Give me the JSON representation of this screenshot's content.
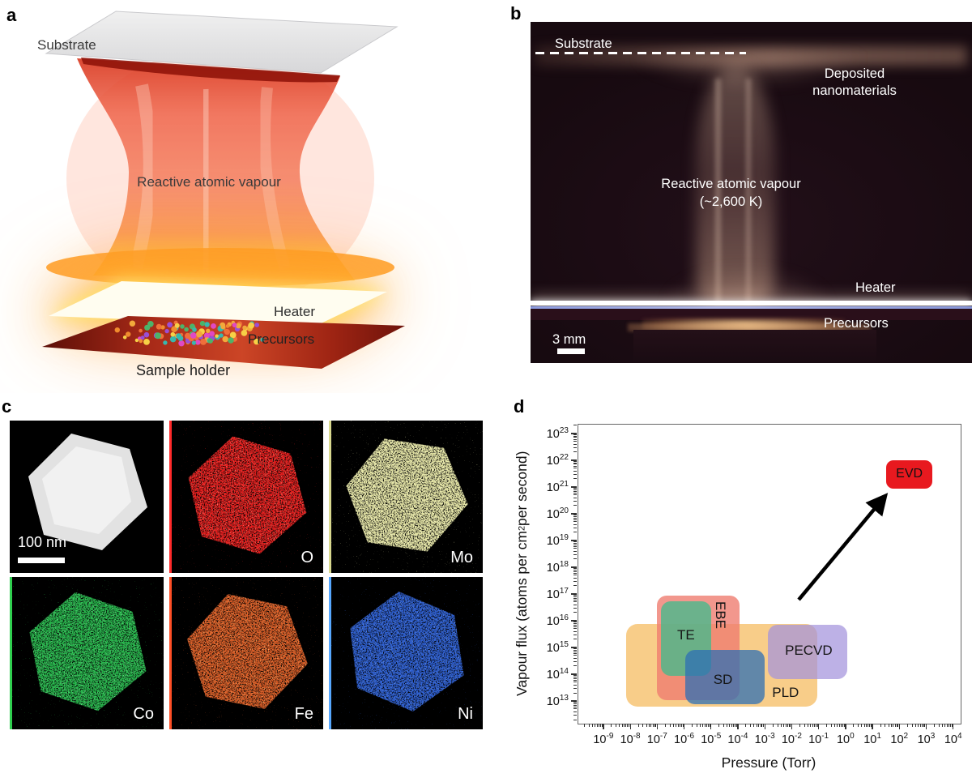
{
  "panel_letters": {
    "a": "a",
    "b": "b",
    "c": "c",
    "d": "d"
  },
  "panel_a": {
    "substrate_label": "Substrate",
    "vapour_label": "Reactive atomic vapour",
    "heater_label": "Heater",
    "precursors_label": "Precursors",
    "sample_holder_label": "Sample holder",
    "precursor_dot_colors": [
      "#f2a93b",
      "#f7d046",
      "#4db36a",
      "#38b8ae",
      "#e049c4",
      "#9a4fd6",
      "#ef6f3a",
      "#f08c2e"
    ]
  },
  "panel_b": {
    "substrate_label": "Substrate",
    "deposited_label_line1": "Deposited",
    "deposited_label_line2": "nanomaterials",
    "vapour_label_line1": "Reactive atomic vapour",
    "vapour_label_line2": "(~2,600 K)",
    "heater_label": "Heater",
    "precursors_label": "Precursors",
    "scale_bar_label": "3 mm"
  },
  "panel_c": {
    "scale_bar_label": "100 nm",
    "maps": [
      {
        "kind": "stem",
        "label": ""
      },
      {
        "kind": "eds",
        "label": "O",
        "color": "#e41e1e",
        "light": "#ff8d7a",
        "edge": "#ff2a2a"
      },
      {
        "kind": "eds",
        "label": "Mo",
        "color": "#e6e6a6",
        "light": "#f6f6d2",
        "edge": "#d9d98f"
      },
      {
        "kind": "eds",
        "label": "Co",
        "color": "#28b64c",
        "light": "#7fe09a",
        "edge": "#2fd04f"
      },
      {
        "kind": "eds",
        "label": "Fe",
        "color": "#d85c28",
        "light": "#ffb36e",
        "edge": "#ff4f26"
      },
      {
        "kind": "eds",
        "label": "Ni",
        "color": "#2f5fd0",
        "light": "#6f9bee",
        "edge": "#57a8ff"
      }
    ]
  },
  "chart_data": {
    "type": "area",
    "subtype": "log-log labelled regions",
    "title": "",
    "x": {
      "label": "Pressure (Torr)",
      "log_min": -9.96,
      "log_max": 4.25,
      "tick_exponents": [
        -9,
        -8,
        -7,
        -6,
        -5,
        -4,
        -3,
        -2,
        -1,
        0,
        1,
        2,
        3,
        4
      ]
    },
    "y": {
      "label_prefix": "Vapour flux (atoms per cm",
      "label_sup": "2",
      "label_suffix": " per second)",
      "log_min": 12.18,
      "log_max": 23.36,
      "tick_exponents": [
        13,
        14,
        15,
        16,
        17,
        18,
        19,
        20,
        21,
        22,
        23
      ]
    },
    "regions": [
      {
        "label": "PLD",
        "x": [
          6.5e-09,
          0.085
        ],
        "y": [
          6500000000000.0,
          8000000000000000.0
        ],
        "color": "#f6c06b",
        "opacity": 0.8,
        "label_at": [
          0.0055,
          22000000000000.0
        ],
        "label_rotate": 0,
        "radius": 14
      },
      {
        "label": "EBE",
        "x": [
          9e-08,
          0.00011
        ],
        "y": [
          11500000000000.0,
          9e+16
        ],
        "color": "#ef7d70",
        "opacity": 0.8,
        "label_at": [
          2e-05,
          1.7e+16
        ],
        "label_rotate": 90,
        "radius": 12
      },
      {
        "label": "TE",
        "x": [
          1.3e-07,
          9.5e-06
        ],
        "y": [
          90000000000000.0,
          5.5e+16
        ],
        "color": "#49b98c",
        "opacity": 0.8,
        "label_at": [
          1.1e-06,
          3000000000000000.0
        ],
        "label_rotate": 0,
        "radius": 12
      },
      {
        "label": "SD",
        "x": [
          1e-06,
          0.0009
        ],
        "y": [
          8000000000000.0,
          850000000000000.0
        ],
        "color": "#2f6fb4",
        "opacity": 0.75,
        "label_at": [
          2.6e-05,
          65000000000000.0
        ],
        "label_rotate": 0,
        "radius": 12
      },
      {
        "label": "PECVD",
        "x": [
          0.00125,
          1.1
        ],
        "y": [
          70000000000000.0,
          7500000000000000.0
        ],
        "color": "#a393dd",
        "opacity": 0.72,
        "label_at": [
          0.04,
          800000000000000.0
        ],
        "label_rotate": 0,
        "radius": 12
      },
      {
        "label": "EVD",
        "x": [
          30.0,
          1600.0
        ],
        "y": [
          9.5e+20,
          1.05e+22
        ],
        "color": "#e8191f",
        "opacity": 1.0,
        "label_at": [
          220.0,
          3.2e+21
        ],
        "label_rotate": 0,
        "radius": 9,
        "text_color": "#111",
        "label_size": 16
      }
    ],
    "arrow": {
      "from": [
        0.017,
        6.5e+16
      ],
      "to": [
        26.0,
        4.5e+20
      ],
      "color": "#000"
    }
  }
}
